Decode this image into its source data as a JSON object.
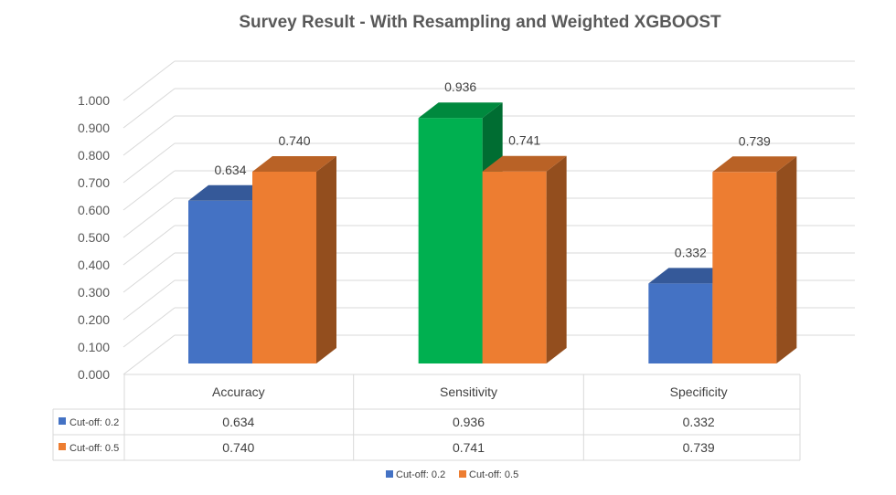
{
  "chart_data": {
    "type": "bar",
    "title": "Survey Result - With Resampling and Weighted XGBOOST",
    "categories": [
      "Accuracy",
      "Sensitivity",
      "Specificity"
    ],
    "series": [
      {
        "name": "Cut-off: 0.2",
        "values": [
          0.634,
          0.936,
          0.332
        ],
        "color": "#4472C4",
        "labels": [
          "0.634",
          "0.936",
          "0.332"
        ]
      },
      {
        "name": "Cut-off: 0.5",
        "values": [
          0.74,
          0.741,
          0.739
        ],
        "color": "#ED7D31",
        "labels": [
          "0.740",
          "0.741",
          "0.739"
        ]
      }
    ],
    "highlight_color": "#00B050",
    "highlight_point": {
      "series": 0,
      "category": 1
    },
    "ylim": [
      0,
      1.0
    ],
    "yticks": [
      "0.000",
      "0.100",
      "0.200",
      "0.300",
      "0.400",
      "0.500",
      "0.600",
      "0.700",
      "0.800",
      "0.900",
      "1.000"
    ],
    "grid": true,
    "style": "3d-column",
    "data_table": true,
    "legend_position": "bottom"
  }
}
